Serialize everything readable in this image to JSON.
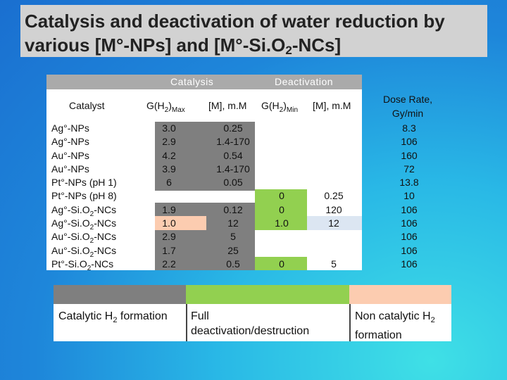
{
  "title": {
    "line1": "Catalysis and deactivation of water reduction by",
    "line2_prefix": "various [M°-NPs] and [M°-Si.O",
    "line2_sub": "2",
    "line2_suffix": "-NCs]"
  },
  "group_headers": {
    "catalysis": "Catalysis",
    "deactivation": "Deactivation"
  },
  "columns": {
    "catalyst": "Catalyst",
    "g_max_main": "G(H",
    "g_max_sub1": "2",
    "g_max_mid": ")",
    "g_max_sub2": "Max",
    "m_cat": "[M], m.M",
    "g_min_main": "G(H",
    "g_min_sub1": "2",
    "g_min_mid": ")",
    "g_min_sub2": "Min",
    "m_deact": "[M], m.M",
    "dose_rate_line1": "Dose Rate,",
    "dose_rate_line2": "Gy/min"
  },
  "rows": [
    {
      "catalyst": "Ag°-NPs",
      "g_max": "3.0",
      "m_cat": "0.25",
      "g_min": "",
      "m_deact": "",
      "dose_rate": "8.3"
    },
    {
      "catalyst": "Ag°-NPs",
      "g_max": "2.9",
      "m_cat": "1.4-170",
      "g_min": "",
      "m_deact": "",
      "dose_rate": "106"
    },
    {
      "catalyst": "Au°-NPs",
      "g_max": "4.2",
      "m_cat": "0.54",
      "g_min": "",
      "m_deact": "",
      "dose_rate": "160"
    },
    {
      "catalyst": "Au°-NPs",
      "g_max": "3.9",
      "m_cat": "1.4-170",
      "g_min": "",
      "m_deact": "",
      "dose_rate": "72"
    },
    {
      "catalyst": "Pt°-NPs (pH 1)",
      "g_max": "6",
      "m_cat": "0.05",
      "g_min": "",
      "m_deact": "",
      "dose_rate": "13.8"
    },
    {
      "catalyst": "Pt°-NPs (pH 8)",
      "g_max": "",
      "m_cat": "",
      "g_min": "0",
      "m_deact": "0.25",
      "dose_rate": "10"
    },
    {
      "catalyst_pre": "Ag°-Si.O",
      "catalyst_sub": "2",
      "catalyst_post": "-NCs",
      "g_max": "1.9",
      "m_cat": "0.12",
      "g_min": "0",
      "m_deact": "120",
      "dose_rate": "106"
    },
    {
      "catalyst_pre": "Ag°-Si.O",
      "catalyst_sub": "2",
      "catalyst_post": "-NCs",
      "g_max": "1.0",
      "m_cat": "12",
      "g_min": "1.0",
      "m_deact": "12",
      "dose_rate": "106"
    },
    {
      "catalyst_pre": "Au°-Si.O",
      "catalyst_sub": "2",
      "catalyst_post": "-NCs",
      "g_max": "2.9",
      "m_cat": "5",
      "g_min": "",
      "m_deact": "",
      "dose_rate": "106"
    },
    {
      "catalyst_pre": "Au°-Si.O",
      "catalyst_sub": "2",
      "catalyst_post": "-NCs",
      "g_max": "1.7",
      "m_cat": "25",
      "g_min": "",
      "m_deact": "",
      "dose_rate": "106"
    },
    {
      "catalyst_pre": "Pt°-Si.O",
      "catalyst_sub": "2",
      "catalyst_post": "-NCs",
      "g_max": "2.2",
      "m_cat": "0.5",
      "g_min": "0",
      "m_deact": "5",
      "dose_rate": "106"
    }
  ],
  "legend": {
    "catalytic_pre": "Catalytic H",
    "catalytic_sub": "2",
    "catalytic_post": " formation",
    "full_deact_line1": "Full",
    "full_deact_line2": "deactivation/destruction",
    "noncat_line1_pre": "Non catalytic H",
    "noncat_line1_sub": "2",
    "noncat_line2": "formation"
  },
  "colors": {
    "catalytic": "#7f7f7f",
    "full_deactivation": "#92d050",
    "non_catalytic": "#fcccb0",
    "highlight_blue": "#dce6f2",
    "title_box": "#d2d2d2",
    "header_band": "#aaaaaa"
  }
}
